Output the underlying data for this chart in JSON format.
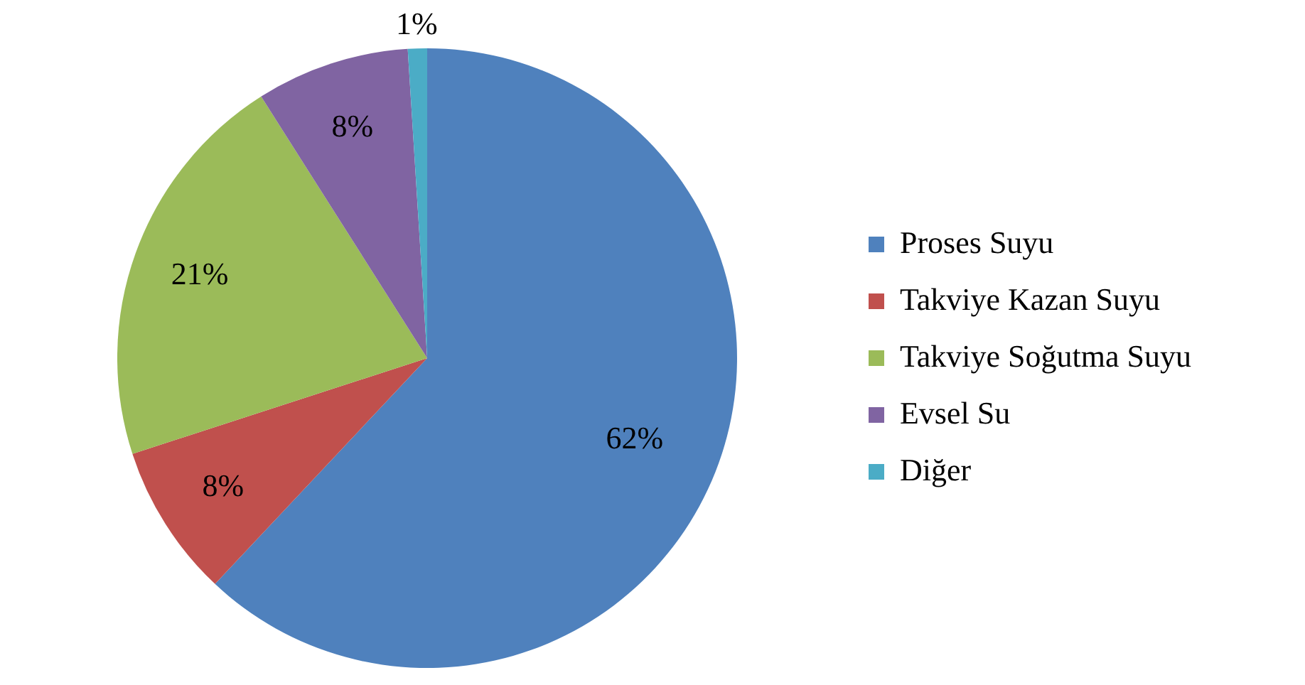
{
  "chart_data": {
    "type": "pie",
    "categories": [
      "Proses Suyu",
      "Takviye Kazan Suyu",
      "Takviye Soğutma Suyu",
      "Evsel Su",
      "Diğer"
    ],
    "values": [
      62,
      8,
      21,
      8,
      1
    ],
    "colors": [
      "#4f81bd",
      "#c0504d",
      "#9bbb59",
      "#8064a2",
      "#4bacc6"
    ],
    "value_labels": [
      "62%",
      "8%",
      "21%",
      "8%",
      "1%"
    ],
    "legend": "right"
  }
}
